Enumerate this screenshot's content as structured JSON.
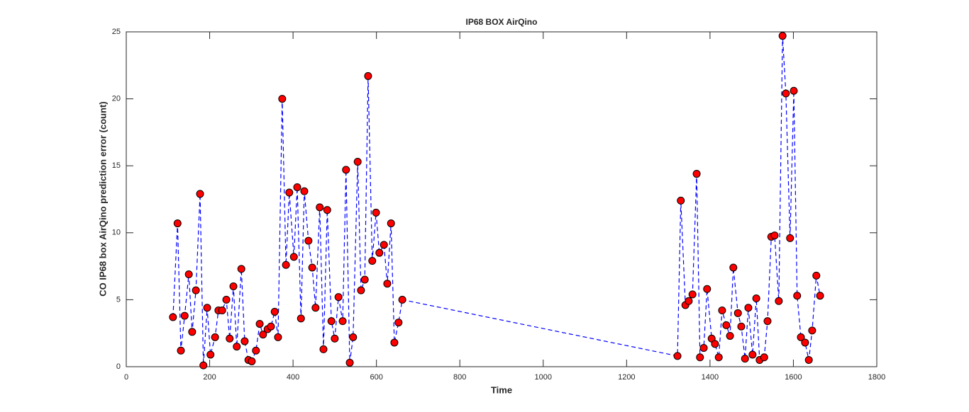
{
  "chart_data": {
    "type": "line",
    "title": "IP68 BOX AirQino",
    "xlabel": "Time",
    "ylabel": "CO IP68 box AirQino prediction error (count)",
    "x": [
      112,
      123,
      131,
      140,
      150,
      158,
      167,
      177,
      185,
      194,
      202,
      213,
      221,
      230,
      240,
      248,
      257,
      265,
      276,
      284,
      293,
      301,
      311,
      320,
      328,
      339,
      347,
      356,
      364,
      374,
      383,
      391,
      402,
      410,
      419,
      427,
      437,
      446,
      454,
      464,
      473,
      482,
      492,
      500,
      509,
      519,
      527,
      536,
      544,
      555,
      563,
      572,
      580,
      590,
      599,
      607,
      618,
      626,
      635,
      643,
      653,
      662,
      1322,
      1330,
      1341,
      1349,
      1358,
      1368,
      1376,
      1385,
      1393,
      1404,
      1412,
      1421,
      1429,
      1439,
      1448,
      1456,
      1467,
      1475,
      1484,
      1492,
      1502,
      1511,
      1519,
      1530,
      1538,
      1547,
      1555,
      1565,
      1574,
      1582,
      1592,
      1601,
      1609,
      1618,
      1628,
      1637,
      1645,
      1655,
      1664
    ],
    "values": [
      3.7,
      10.7,
      1.2,
      3.8,
      6.9,
      2.6,
      5.7,
      12.9,
      0.1,
      4.4,
      0.9,
      2.2,
      4.2,
      4.2,
      5.0,
      2.1,
      6.0,
      1.5,
      7.3,
      1.9,
      0.5,
      0.4,
      1.2,
      3.2,
      2.4,
      2.8,
      3.0,
      4.1,
      2.2,
      20.0,
      7.6,
      13.0,
      8.2,
      13.4,
      3.6,
      13.1,
      9.4,
      7.4,
      4.4,
      11.9,
      1.3,
      11.7,
      3.4,
      2.1,
      5.2,
      3.4,
      14.7,
      0.3,
      2.2,
      15.3,
      5.7,
      6.5,
      21.7,
      7.9,
      11.5,
      8.5,
      9.1,
      6.2,
      10.7,
      1.8,
      3.3,
      5.0,
      0.8,
      12.4,
      4.6,
      4.9,
      5.4,
      14.4,
      0.7,
      1.4,
      5.8,
      2.1,
      1.7,
      0.7,
      4.2,
      3.1,
      2.3,
      7.4,
      4.0,
      3.0,
      0.6,
      4.4,
      0.9,
      5.1,
      0.5,
      0.7,
      3.4,
      9.7,
      9.8,
      4.9,
      24.7,
      20.4,
      9.6,
      20.6,
      5.3,
      2.2,
      1.8,
      0.5,
      2.7,
      6.8,
      5.3
    ],
    "color": "#0000ff",
    "marker_color": "#ff0000",
    "xlim": [
      0,
      1800
    ],
    "xticks": [
      0,
      200,
      400,
      600,
      800,
      1000,
      1200,
      1400,
      1600,
      1800
    ],
    "ylim": [
      0,
      25
    ],
    "yticks": [
      0,
      5,
      10,
      15,
      20,
      25
    ],
    "grid": false
  }
}
